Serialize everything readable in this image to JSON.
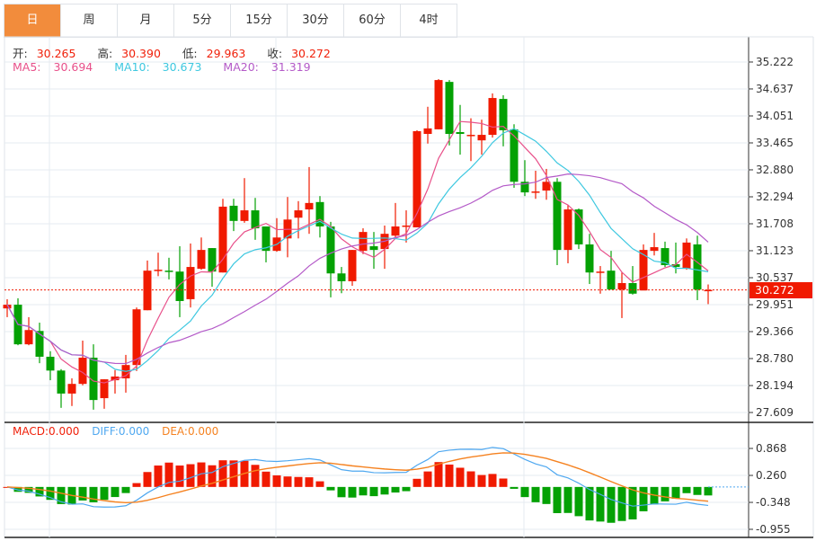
{
  "tabs": [
    {
      "label": "日",
      "active": true
    },
    {
      "label": "周",
      "active": false
    },
    {
      "label": "月",
      "active": false
    },
    {
      "label": "5分",
      "active": false
    },
    {
      "label": "15分",
      "active": false
    },
    {
      "label": "30分",
      "active": false
    },
    {
      "label": "60分",
      "active": false
    },
    {
      "label": "4时",
      "active": false
    }
  ],
  "ohlc_legend": {
    "open_label": "开:",
    "open": "30.265",
    "high_label": "高:",
    "high": "30.390",
    "low_label": "低:",
    "low": "29.963",
    "close_label": "收:",
    "close": "30.272"
  },
  "ma_legend": {
    "ma5_label": "MA5:",
    "ma5": "30.694",
    "ma10_label": "MA10:",
    "ma10": "30.673",
    "ma20_label": "MA20:",
    "ma20": "31.319"
  },
  "macd_legend": {
    "macd": "MACD:0.000",
    "diff": "DIFF:0.000",
    "dea": "DEA:0.000"
  },
  "current_price": "30.272",
  "colors": {
    "up": "#f01a00",
    "down": "#04a104",
    "ma5": "#e8508a",
    "ma10": "#3ec8e0",
    "ma20": "#b45ac8",
    "diff": "#4fa8f0",
    "dea": "#f58220"
  },
  "chart_data": {
    "type": "candlestick",
    "price_axis_ticks": [
      "35.222",
      "34.637",
      "34.051",
      "33.465",
      "32.880",
      "32.294",
      "31.708",
      "31.123",
      "30.537",
      "29.951",
      "29.366",
      "28.780",
      "28.194",
      "27.609"
    ],
    "price_range": [
      27.609,
      35.222
    ],
    "macd_axis_ticks": [
      "0.868",
      "0.260",
      "-0.348",
      "-0.955"
    ],
    "macd_range": [
      -0.955,
      0.868
    ],
    "candles_ohlc": [
      [
        29.87,
        30.07,
        29.68,
        29.95
      ],
      [
        29.95,
        30.09,
        29.07,
        29.09
      ],
      [
        29.09,
        29.68,
        29.07,
        29.4
      ],
      [
        29.38,
        29.56,
        28.68,
        28.82
      ],
      [
        28.82,
        28.94,
        28.31,
        28.52
      ],
      [
        28.52,
        28.55,
        27.71,
        28.02
      ],
      [
        28.02,
        28.35,
        27.75,
        28.23
      ],
      [
        28.23,
        29.17,
        28.2,
        28.8
      ],
      [
        28.8,
        29.09,
        27.67,
        27.88
      ],
      [
        27.92,
        28.33,
        27.69,
        28.33
      ],
      [
        28.31,
        28.53,
        28.02,
        28.39
      ],
      [
        28.35,
        28.86,
        28.04,
        28.64
      ],
      [
        28.64,
        29.89,
        28.51,
        29.85
      ],
      [
        29.83,
        30.91,
        29.83,
        30.69
      ],
      [
        30.69,
        31.08,
        30.57,
        30.71
      ],
      [
        30.69,
        30.97,
        30.5,
        30.67
      ],
      [
        30.67,
        31.22,
        29.68,
        30.03
      ],
      [
        30.07,
        31.28,
        29.89,
        30.77
      ],
      [
        30.73,
        31.41,
        30.71,
        31.14
      ],
      [
        31.18,
        31.18,
        30.34,
        30.67
      ],
      [
        30.65,
        32.25,
        30.65,
        32.08
      ],
      [
        32.1,
        32.25,
        31.55,
        31.77
      ],
      [
        31.77,
        32.7,
        31.73,
        32.0
      ],
      [
        32.0,
        32.27,
        31.36,
        31.61
      ],
      [
        31.65,
        31.65,
        30.87,
        31.12
      ],
      [
        31.12,
        31.83,
        31.1,
        31.41
      ],
      [
        31.39,
        32.29,
        30.98,
        31.8
      ],
      [
        31.84,
        32.2,
        31.39,
        32.0
      ],
      [
        32.02,
        32.94,
        31.49,
        32.16
      ],
      [
        32.18,
        32.31,
        31.41,
        31.65
      ],
      [
        31.65,
        31.75,
        30.11,
        30.63
      ],
      [
        30.63,
        30.77,
        30.2,
        30.46
      ],
      [
        30.46,
        31.14,
        30.36,
        31.14
      ],
      [
        31.12,
        31.61,
        31.05,
        31.53
      ],
      [
        31.22,
        31.53,
        30.73,
        31.14
      ],
      [
        31.16,
        31.67,
        30.73,
        31.49
      ],
      [
        31.45,
        32.16,
        31.41,
        31.65
      ],
      [
        31.65,
        32.0,
        31.3,
        31.67
      ],
      [
        31.63,
        33.74,
        31.63,
        33.72
      ],
      [
        33.66,
        34.25,
        33.45,
        33.78
      ],
      [
        33.76,
        34.85,
        33.76,
        34.83
      ],
      [
        34.79,
        34.83,
        33.41,
        33.66
      ],
      [
        33.7,
        34.29,
        33.21,
        33.66
      ],
      [
        33.62,
        34.0,
        33.07,
        33.64
      ],
      [
        33.52,
        33.97,
        33.21,
        33.64
      ],
      [
        33.64,
        34.54,
        33.58,
        34.44
      ],
      [
        34.42,
        34.5,
        33.39,
        33.74
      ],
      [
        33.76,
        33.87,
        32.49,
        32.62
      ],
      [
        32.62,
        33.09,
        32.31,
        32.39
      ],
      [
        32.39,
        32.86,
        32.25,
        32.41
      ],
      [
        32.43,
        32.9,
        32.23,
        32.62
      ],
      [
        32.62,
        32.7,
        30.81,
        31.14
      ],
      [
        31.14,
        32.12,
        30.85,
        32.02
      ],
      [
        32.02,
        32.04,
        31.16,
        31.26
      ],
      [
        31.26,
        31.49,
        30.4,
        30.65
      ],
      [
        30.65,
        30.79,
        30.19,
        30.67
      ],
      [
        30.69,
        31.12,
        30.28,
        30.28
      ],
      [
        30.28,
        30.65,
        29.66,
        30.42
      ],
      [
        30.42,
        30.79,
        30.17,
        30.19
      ],
      [
        30.26,
        31.26,
        30.26,
        31.14
      ],
      [
        31.12,
        31.51,
        31.02,
        31.2
      ],
      [
        31.18,
        31.32,
        30.77,
        30.81
      ],
      [
        30.83,
        31.3,
        30.63,
        30.77
      ],
      [
        30.73,
        31.39,
        30.71,
        31.3
      ],
      [
        31.26,
        31.45,
        30.05,
        30.28
      ],
      [
        30.265,
        30.39,
        29.963,
        30.272
      ]
    ]
  }
}
